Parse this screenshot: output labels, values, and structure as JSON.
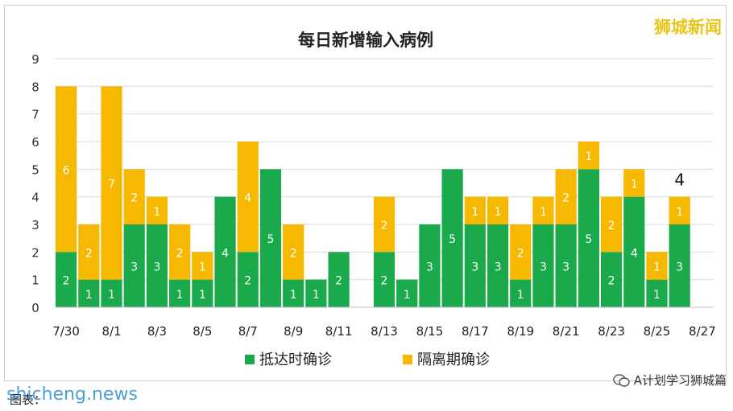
{
  "brand": "狮城新闻",
  "watermark": "shicheng.news",
  "caption": "图表：",
  "wechat_account": "A计划学习狮城篇",
  "colors": {
    "green": "#1aaa4b",
    "orange": "#f7b800",
    "grid": "#d9d9d9",
    "brand": "#e8c619",
    "watermark": "#2d8ed6"
  },
  "chart_data": {
    "type": "bar",
    "stacked": true,
    "title": "每日新增输入病例",
    "categories": [
      "7/30",
      "7/31",
      "8/1",
      "8/2",
      "8/3",
      "8/4",
      "8/5",
      "8/6",
      "8/7",
      "8/8",
      "8/9",
      "8/10",
      "8/11",
      "8/12",
      "8/13",
      "8/14",
      "8/15",
      "8/16",
      "8/17",
      "8/18",
      "8/19",
      "8/20",
      "8/21",
      "8/22",
      "8/23",
      "8/24",
      "8/25",
      "8/26",
      "8/27"
    ],
    "x_tick_labels": [
      "7/30",
      "8/1",
      "8/3",
      "8/5",
      "8/7",
      "8/9",
      "8/11",
      "8/13",
      "8/15",
      "8/17",
      "8/19",
      "8/21",
      "8/23",
      "8/25",
      "8/27"
    ],
    "series": [
      {
        "name": "抵达时确诊",
        "color": "#1aaa4b",
        "values": [
          2,
          1,
          1,
          3,
          3,
          1,
          1,
          4,
          2,
          5,
          1,
          1,
          2,
          0,
          2,
          1,
          3,
          5,
          3,
          3,
          1,
          3,
          3,
          5,
          2,
          4,
          1,
          3,
          0
        ]
      },
      {
        "name": "隔离期确诊",
        "color": "#f7b800",
        "values": [
          6,
          2,
          7,
          2,
          1,
          2,
          1,
          0,
          4,
          0,
          2,
          0,
          0,
          0,
          2,
          0,
          0,
          0,
          1,
          1,
          2,
          1,
          2,
          1,
          2,
          1,
          1,
          1,
          0
        ]
      }
    ],
    "annotations": [
      {
        "category": "8/26",
        "text": "4"
      }
    ],
    "ylim": [
      0,
      9
    ],
    "yticks": [
      0,
      1,
      2,
      3,
      4,
      5,
      6,
      7,
      8,
      9
    ],
    "grid": true,
    "legend": "bottom"
  }
}
